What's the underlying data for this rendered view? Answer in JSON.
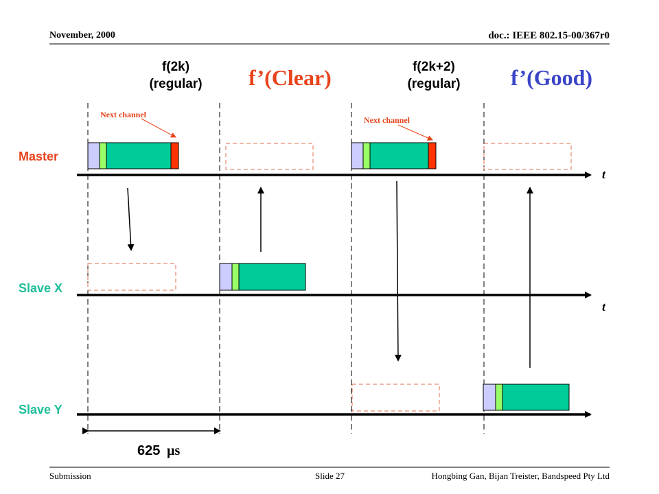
{
  "header": {
    "date": "November, 2000",
    "doc_id": "doc.: IEEE 802.15-00/367r0"
  },
  "footer": {
    "left": "Submission",
    "center": "Slide 27",
    "right": "Hongbing Gan, Bijan Treister,  Bandspeed Pty Ltd"
  },
  "columns": {
    "f2k_line1": "f(2k)",
    "f2k_line2": "(regular)",
    "clear": "f’(Clear)",
    "f2k2_line1": "f(2k+2)",
    "f2k2_line2": "(regular)",
    "good": "f’(Good)"
  },
  "annotations": {
    "next_channel_1": "Next channel",
    "next_channel_2": "Next channel"
  },
  "rows": {
    "master": "Master",
    "slave_x": "Slave X",
    "slave_y": "Slave Y"
  },
  "axis": {
    "t_master": "t",
    "t_slave_x": "t"
  },
  "duration": {
    "value": "625",
    "unit": "µs"
  },
  "colors": {
    "master": "#e8431b",
    "slave": "#1fbf9a",
    "clear": "#e8431b",
    "good": "#3a44c8",
    "packet_body": "#00cc99",
    "packet_access": "#ccccff",
    "packet_header": "#99ff66",
    "packet_tail": "#ff3300",
    "dashed_slot": "#e07050"
  }
}
